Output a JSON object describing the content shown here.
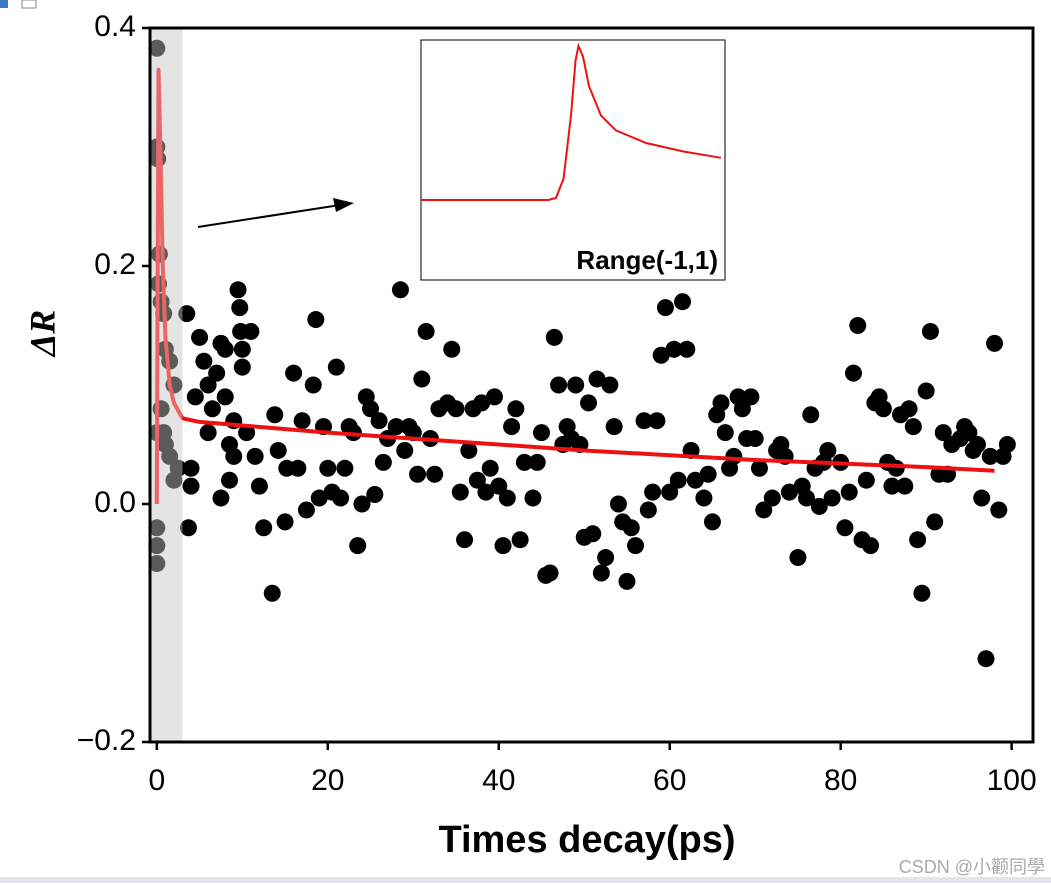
{
  "chart_data": {
    "type": "scatter",
    "x_label": "Times decay(ps)",
    "y_label": "ΔR",
    "watermark": "CSDN @小颧同學",
    "xlim": [
      -0.8,
      102.5
    ],
    "ylim": [
      -0.2,
      0.4
    ],
    "xticks": [
      0,
      20,
      40,
      60,
      80,
      100
    ],
    "yticks": [
      {
        "value": -0.2,
        "label": "−0.2"
      },
      {
        "value": 0.0,
        "label": "0.0"
      },
      0.2,
      0.4
    ],
    "shaded_range": [
      -0.8,
      3
    ],
    "point_color": "#000000",
    "x": [
      0,
      0,
      0.1,
      0.3,
      0.2,
      0.5,
      0.8,
      1,
      1.5,
      2,
      0.5,
      0.8,
      1,
      0,
      0,
      0,
      1.5,
      2.5,
      2,
      0,
      3.5,
      4,
      4,
      3.7,
      4.5,
      5,
      5.5,
      6,
      6,
      6.5,
      7,
      7.5,
      7.5,
      8,
      8,
      8.5,
      8.5,
      9,
      9,
      9.5,
      9.7,
      9.8,
      10,
      10,
      10.5,
      11,
      11.5,
      12,
      12.5,
      13.5,
      13.8,
      14.2,
      15,
      15.2,
      16,
      16.5,
      17,
      17.5,
      18.3,
      18.6,
      19,
      19.5,
      20,
      20.5,
      21,
      21.5,
      22,
      22.5,
      23,
      23.5,
      24,
      24.5,
      25,
      25.5,
      26,
      26.5,
      27,
      28,
      28.5,
      29,
      29.5,
      30,
      30.5,
      31,
      31.5,
      32,
      32.5,
      33,
      34,
      34.5,
      35,
      35.5,
      36,
      36.5,
      37,
      37.5,
      38,
      38.5,
      39,
      39.5,
      40,
      40.5,
      41,
      41.5,
      42,
      42.5,
      43,
      44,
      44.5,
      45,
      45.5,
      46,
      46.5,
      47,
      47.5,
      48,
      48.5,
      49,
      49.5,
      50,
      50.5,
      51,
      51.5,
      52,
      52.5,
      53,
      53.5,
      54,
      54.5,
      55,
      55.5,
      56,
      57,
      57.5,
      58,
      58.5,
      59,
      59.5,
      60,
      60.5,
      61,
      61.5,
      62,
      62.5,
      63,
      64,
      64.5,
      65,
      65.5,
      66,
      66.5,
      67,
      67.5,
      68,
      68.5,
      69,
      69.5,
      70,
      70.5,
      71,
      72,
      72.5,
      73,
      73.5,
      74,
      75,
      75.5,
      76,
      76.5,
      77,
      77.5,
      78,
      78.5,
      79,
      80,
      80.5,
      81,
      81.5,
      82,
      82.5,
      83,
      83.5,
      84,
      84.5,
      85,
      85.5,
      86,
      86.5,
      87,
      87.5,
      88,
      88.5,
      89,
      89.5,
      90,
      90.5,
      91,
      91.5,
      92,
      92.5,
      93,
      94,
      94.5,
      95,
      95.5,
      96,
      96.5,
      97,
      97.5,
      98,
      98.5,
      99,
      99.5
    ],
    "values": [
      0.383,
      0.3,
      0.29,
      0.21,
      0.185,
      0.17,
      0.16,
      0.13,
      0.12,
      0.1,
      0.08,
      0.06,
      0.05,
      -0.02,
      -0.035,
      -0.05,
      0.04,
      0.03,
      0.02,
      0.06,
      0.16,
      0.03,
      0.015,
      -0.02,
      0.09,
      0.14,
      0.12,
      0.1,
      0.06,
      0.08,
      0.11,
      0.135,
      0.005,
      0.13,
      0.09,
      0.05,
      0.02,
      0.04,
      0.07,
      0.18,
      0.165,
      0.145,
      0.13,
      0.115,
      0.06,
      0.145,
      0.04,
      0.015,
      -0.02,
      -0.075,
      0.075,
      0.045,
      -0.015,
      0.03,
      0.11,
      0.03,
      0.07,
      -0.005,
      0.1,
      0.155,
      0.005,
      0.065,
      0.03,
      0.01,
      0.115,
      0.005,
      0.03,
      0.065,
      0.06,
      -0.035,
      0.0,
      0.09,
      0.08,
      0.008,
      0.07,
      0.035,
      0.055,
      0.065,
      0.18,
      0.045,
      0.065,
      0.06,
      0.025,
      0.105,
      0.145,
      0.055,
      0.025,
      0.08,
      0.085,
      0.13,
      0.08,
      0.01,
      -0.03,
      0.045,
      0.08,
      0.02,
      0.085,
      0.01,
      0.03,
      0.09,
      0.015,
      -0.035,
      0.005,
      0.065,
      0.08,
      -0.03,
      0.035,
      0.005,
      0.035,
      0.06,
      -0.06,
      -0.058,
      0.14,
      0.1,
      0.05,
      0.065,
      0.055,
      0.1,
      0.05,
      -0.028,
      0.085,
      -0.025,
      0.105,
      -0.058,
      -0.045,
      0.1,
      0.065,
      0.0,
      -0.015,
      -0.065,
      -0.02,
      -0.035,
      0.07,
      -0.005,
      0.01,
      0.07,
      0.125,
      0.165,
      0.01,
      0.13,
      0.02,
      0.17,
      0.13,
      0.045,
      0.02,
      0.005,
      0.025,
      -0.015,
      0.075,
      0.085,
      0.06,
      0.03,
      0.04,
      0.09,
      0.08,
      0.055,
      0.09,
      0.055,
      0.03,
      -0.005,
      0.005,
      0.045,
      0.05,
      0.04,
      0.01,
      -0.045,
      0.015,
      0.005,
      0.075,
      0.03,
      -0.002,
      0.035,
      0.045,
      0.005,
      0.035,
      -0.02,
      0.01,
      0.11,
      0.15,
      -0.03,
      0.02,
      -0.035,
      0.085,
      0.09,
      0.08,
      0.035,
      0.015,
      0.03,
      0.075,
      0.015,
      0.08,
      0.065,
      -0.03,
      -0.075,
      0.095,
      0.145,
      -0.015,
      0.025,
      0.06,
      0.025,
      0.05,
      0.055,
      0.065,
      0.06,
      0.045,
      0.05,
      0.005,
      -0.13,
      0.04,
      0.135,
      -0.005,
      0.04,
      0.05
    ],
    "fit": {
      "color": "#ee1111",
      "x": [
        0,
        0.1,
        0.2,
        0.4,
        0.7,
        1,
        1.5,
        2,
        3,
        5,
        10,
        20,
        30,
        40,
        50,
        60,
        70,
        80,
        90,
        98
      ],
      "values": [
        0,
        0.2,
        0.365,
        0.3,
        0.2,
        0.14,
        0.1,
        0.085,
        0.072,
        0.069,
        0.066,
        0.06,
        0.055,
        0.05,
        0.045,
        0.041,
        0.037,
        0.034,
        0.031,
        0.028
      ]
    },
    "inset": {
      "label": "Range(-1,1)",
      "color": "#ee1111",
      "xlim": [
        -1,
        1
      ],
      "x": [
        -1,
        -0.15,
        -0.1,
        -0.05,
        0,
        0.03,
        0.05,
        0.08,
        0.12,
        0.2,
        0.3,
        0.5,
        0.75,
        1
      ],
      "values": [
        0,
        0,
        0.005,
        0.05,
        0.2,
        0.33,
        0.365,
        0.34,
        0.27,
        0.2,
        0.165,
        0.135,
        0.115,
        0.1
      ]
    }
  }
}
